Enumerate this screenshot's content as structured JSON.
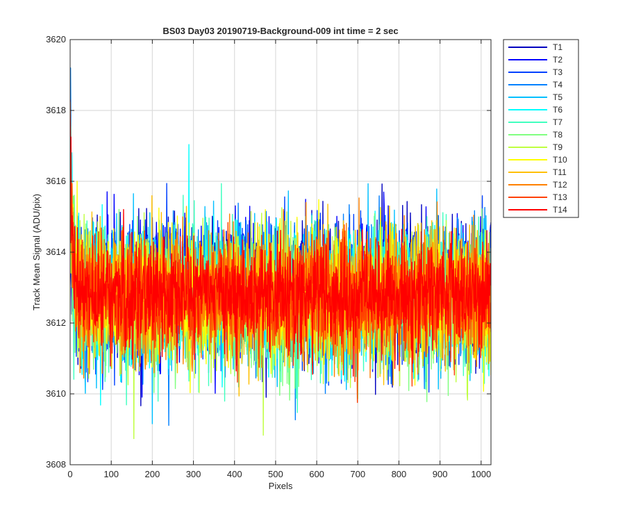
{
  "chart_data": {
    "type": "line",
    "title": "BS03 Day03 20190719-Background-009 int time = 2 sec",
    "xlabel": "Pixels",
    "ylabel": "Track Mean Signal (ADU/pix)",
    "xlim": [
      0,
      1024
    ],
    "ylim": [
      3608,
      3620
    ],
    "xticks": [
      0,
      100,
      200,
      300,
      400,
      500,
      600,
      700,
      800,
      900,
      1000
    ],
    "yticks": [
      3608,
      3610,
      3612,
      3614,
      3616,
      3618,
      3620
    ],
    "grid": true,
    "legend_position": "outside-top-right",
    "series": [
      {
        "name": "T1",
        "color": "#0000BF",
        "mean": 3612.95,
        "noise": 0.95,
        "start": 3614.3
      },
      {
        "name": "T2",
        "color": "#0000FF",
        "mean": 3612.9,
        "noise": 0.95,
        "start": 3614.6
      },
      {
        "name": "T3",
        "color": "#0040FF",
        "mean": 3612.85,
        "noise": 0.95,
        "start": 3615.0
      },
      {
        "name": "T4",
        "color": "#0080FF",
        "mean": 3612.85,
        "noise": 0.95,
        "start": 3619.0
      },
      {
        "name": "T5",
        "color": "#00BFFF",
        "mean": 3612.8,
        "noise": 0.95,
        "start": 3618.1
      },
      {
        "name": "T6",
        "color": "#00FFFF",
        "mean": 3612.75,
        "noise": 1.0,
        "start": 3617.2
      },
      {
        "name": "T7",
        "color": "#40FFBF",
        "mean": 3612.7,
        "noise": 1.0,
        "start": 3616.8
      },
      {
        "name": "T8",
        "color": "#80FF80",
        "mean": 3612.65,
        "noise": 1.0,
        "start": 3616.4
      },
      {
        "name": "T9",
        "color": "#BFFF40",
        "mean": 3612.7,
        "noise": 0.95,
        "start": 3616.0
      },
      {
        "name": "T10",
        "color": "#FFFF00",
        "mean": 3612.75,
        "noise": 0.9,
        "start": 3617.3
      },
      {
        "name": "T11",
        "color": "#FFBF00",
        "mean": 3612.75,
        "noise": 0.9,
        "start": 3616.2
      },
      {
        "name": "T12",
        "color": "#FF8000",
        "mean": 3612.7,
        "noise": 0.9,
        "start": 3615.5
      },
      {
        "name": "T13",
        "color": "#FF4000",
        "mean": 3612.75,
        "noise": 0.8,
        "start": 3616.0
      },
      {
        "name": "T14",
        "color": "#FF0000",
        "mean": 3612.8,
        "noise": 0.75,
        "start": 3617.8
      }
    ]
  }
}
